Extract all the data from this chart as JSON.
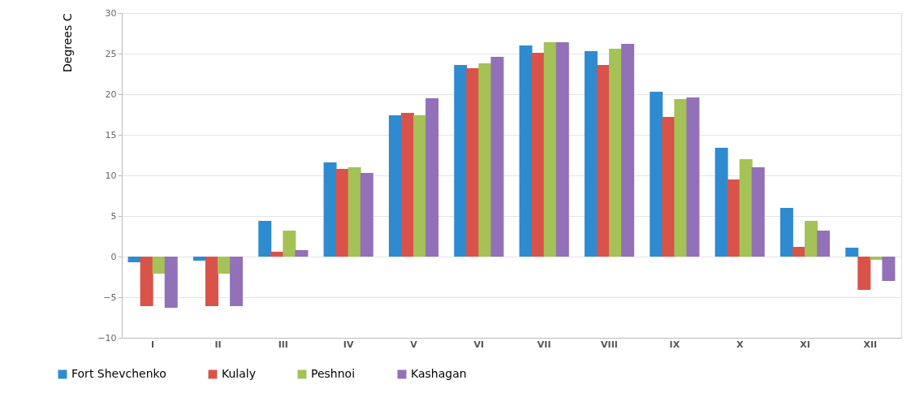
{
  "chart_data": {
    "type": "bar",
    "ylabel": "Degrees C",
    "categories": [
      "I",
      "II",
      "III",
      "IV",
      "V",
      "VI",
      "VII",
      "VIII",
      "IX",
      "X",
      "XI",
      "XII"
    ],
    "series": [
      {
        "name": "Fort Shevchenko",
        "color": "#2e8bd0",
        "values": [
          -0.7,
          -0.5,
          4.4,
          11.6,
          17.4,
          23.6,
          26.0,
          25.3,
          20.3,
          13.4,
          6.0,
          1.1
        ]
      },
      {
        "name": "Kulaly",
        "color": "#d9534a",
        "values": [
          -6.1,
          -6.1,
          0.6,
          10.8,
          17.7,
          23.2,
          25.1,
          23.6,
          17.2,
          9.5,
          1.2,
          -4.1
        ]
      },
      {
        "name": "Peshnoi",
        "color": "#a5c256",
        "values": [
          -2.1,
          -2.1,
          3.2,
          11.0,
          17.4,
          23.8,
          26.4,
          25.6,
          19.4,
          12.0,
          4.4,
          -0.4
        ]
      },
      {
        "name": "Kashagan",
        "color": "#9271b8",
        "values": [
          -6.3,
          -6.1,
          0.8,
          10.3,
          19.5,
          24.6,
          26.4,
          26.2,
          19.6,
          11.0,
          3.2,
          -3.0
        ]
      }
    ],
    "ylim": [
      -10,
      30
    ],
    "yticks": [
      -10,
      -5,
      0,
      5,
      10,
      15,
      20,
      25,
      30
    ],
    "grid": "y",
    "legend": "bottom left"
  }
}
